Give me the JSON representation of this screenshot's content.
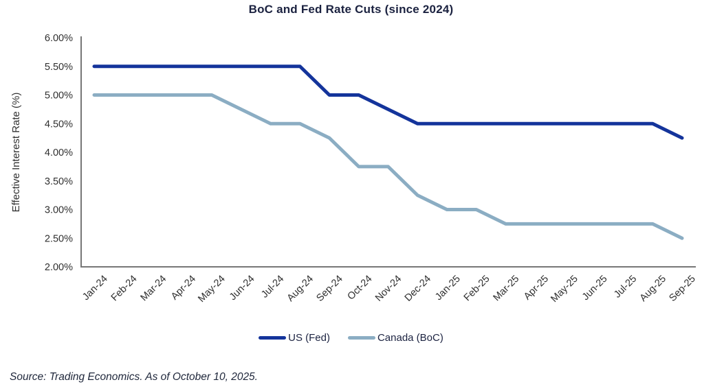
{
  "title": "BoC and Fed Rate Cuts (since 2024)",
  "source": "Source: Trading Economics. As of October 10, 2025.",
  "legend": [
    {
      "label": "US (Fed)",
      "color": "#14349b"
    },
    {
      "label": "Canada (BoC)",
      "color": "#8badc3"
    }
  ],
  "colors": {
    "us_line": "#14349b",
    "canada_line": "#8badc3",
    "axis": "#767676",
    "tick_text": "#2f2f2f",
    "title_text": "#1b2240"
  },
  "chart_data": {
    "type": "line",
    "title": "BoC and Fed Rate Cuts (since 2024)",
    "xlabel": "",
    "ylabel": "Effective Interest Rate (%)",
    "ylim": [
      2.0,
      6.0
    ],
    "ytick_step": 0.5,
    "ytick_labels": [
      "6.00%",
      "5.50%",
      "5.00%",
      "4.50%",
      "4.00%",
      "3.50%",
      "3.00%",
      "2.50%",
      "2.00%"
    ],
    "grid": false,
    "legend_position": "bottom",
    "categories": [
      "Jan-24",
      "Feb-24",
      "Mar-24",
      "Apr-24",
      "May-24",
      "Jun-24",
      "Jul-24",
      "Aug-24",
      "Sep-24",
      "Oct-24",
      "Nov-24",
      "Dec-24",
      "Jan-25",
      "Feb-25",
      "Mar-25",
      "Apr-25",
      "May-25",
      "Jun-25",
      "Jul-25",
      "Aug-25",
      "Sep-25"
    ],
    "series": [
      {
        "name": "US (Fed)",
        "color": "#14349b",
        "values": [
          5.5,
          5.5,
          5.5,
          5.5,
          5.5,
          5.5,
          5.5,
          5.5,
          5.0,
          5.0,
          4.75,
          4.5,
          4.5,
          4.5,
          4.5,
          4.5,
          4.5,
          4.5,
          4.5,
          4.5,
          4.25
        ]
      },
      {
        "name": "Canada (BoC)",
        "color": "#8badc3",
        "values": [
          5.0,
          5.0,
          5.0,
          5.0,
          5.0,
          4.75,
          4.5,
          4.5,
          4.25,
          3.75,
          3.75,
          3.25,
          3.0,
          3.0,
          2.75,
          2.75,
          2.75,
          2.75,
          2.75,
          2.75,
          2.5
        ]
      }
    ]
  }
}
